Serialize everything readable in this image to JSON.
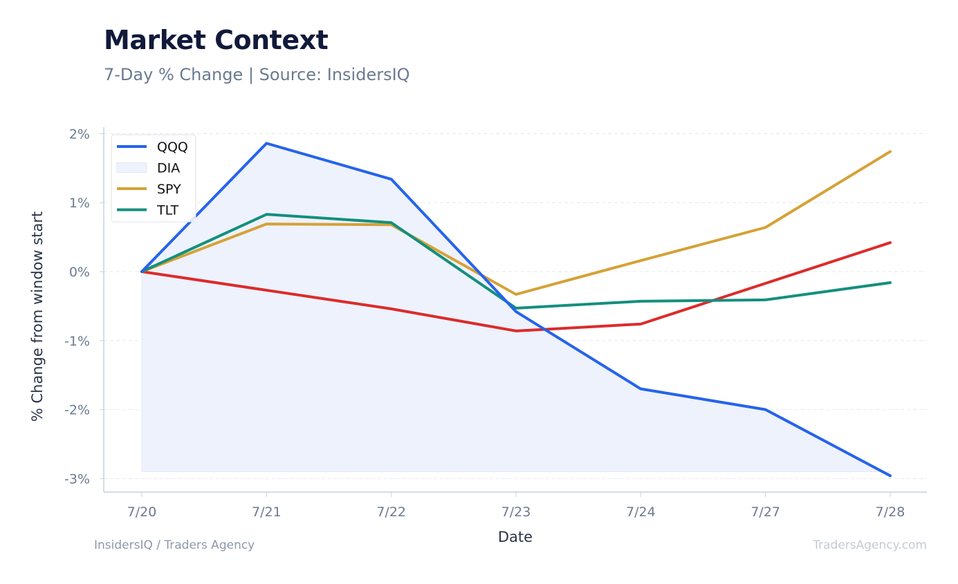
{
  "header": {
    "title": "Market Context",
    "subtitle": "7-Day % Change | Source: InsidersIQ"
  },
  "footer": {
    "left": "InsidersIQ / Traders Agency",
    "right": "TradersAgency.com"
  },
  "chart_data": {
    "type": "line",
    "x": [
      "7/20",
      "7/21",
      "7/22",
      "7/23",
      "7/24",
      "7/27",
      "7/28"
    ],
    "xlabel": "Date",
    "ylabel": "% Change from window start",
    "ylim": [
      -3.2,
      2.1
    ],
    "yticks": [
      2,
      1,
      0,
      -1,
      -2,
      -3
    ],
    "ytick_labels": [
      "2%",
      "1%",
      "0%",
      "-1%",
      "-2%",
      "-3%"
    ],
    "grid": true,
    "legend_position": "top-left",
    "legend": [
      {
        "name": "QQQ",
        "kind": "line",
        "color": "#2563eb"
      },
      {
        "name": "DIA",
        "kind": "area",
        "color": "#eef2fc"
      },
      {
        "name": "SPY",
        "kind": "line",
        "color": "#d4a237"
      },
      {
        "name": "TLT",
        "kind": "line",
        "color": "#138f7e"
      }
    ],
    "area": {
      "values": [
        0,
        1.86,
        1.34,
        -0.58,
        -1.7,
        -2.0,
        -2.96
      ],
      "baseline": -2.9,
      "color": "#eef2fc"
    },
    "series": [
      {
        "values": [
          0,
          -0.27,
          -0.54,
          -0.86,
          -0.76,
          -0.17,
          0.42
        ],
        "color": "#dc2b2b"
      },
      {
        "name": "SPY",
        "values": [
          0,
          0.69,
          0.68,
          -0.33,
          0.16,
          0.64,
          1.74
        ],
        "color": "#d4a237"
      },
      {
        "name": "TLT",
        "values": [
          0,
          0.83,
          0.71,
          -0.53,
          -0.43,
          -0.41,
          -0.16
        ],
        "color": "#138f7e"
      },
      {
        "name": "QQQ",
        "values": [
          0,
          1.86,
          1.34,
          -0.58,
          -1.7,
          -2.0,
          -2.96
        ],
        "color": "#2563eb"
      }
    ]
  }
}
